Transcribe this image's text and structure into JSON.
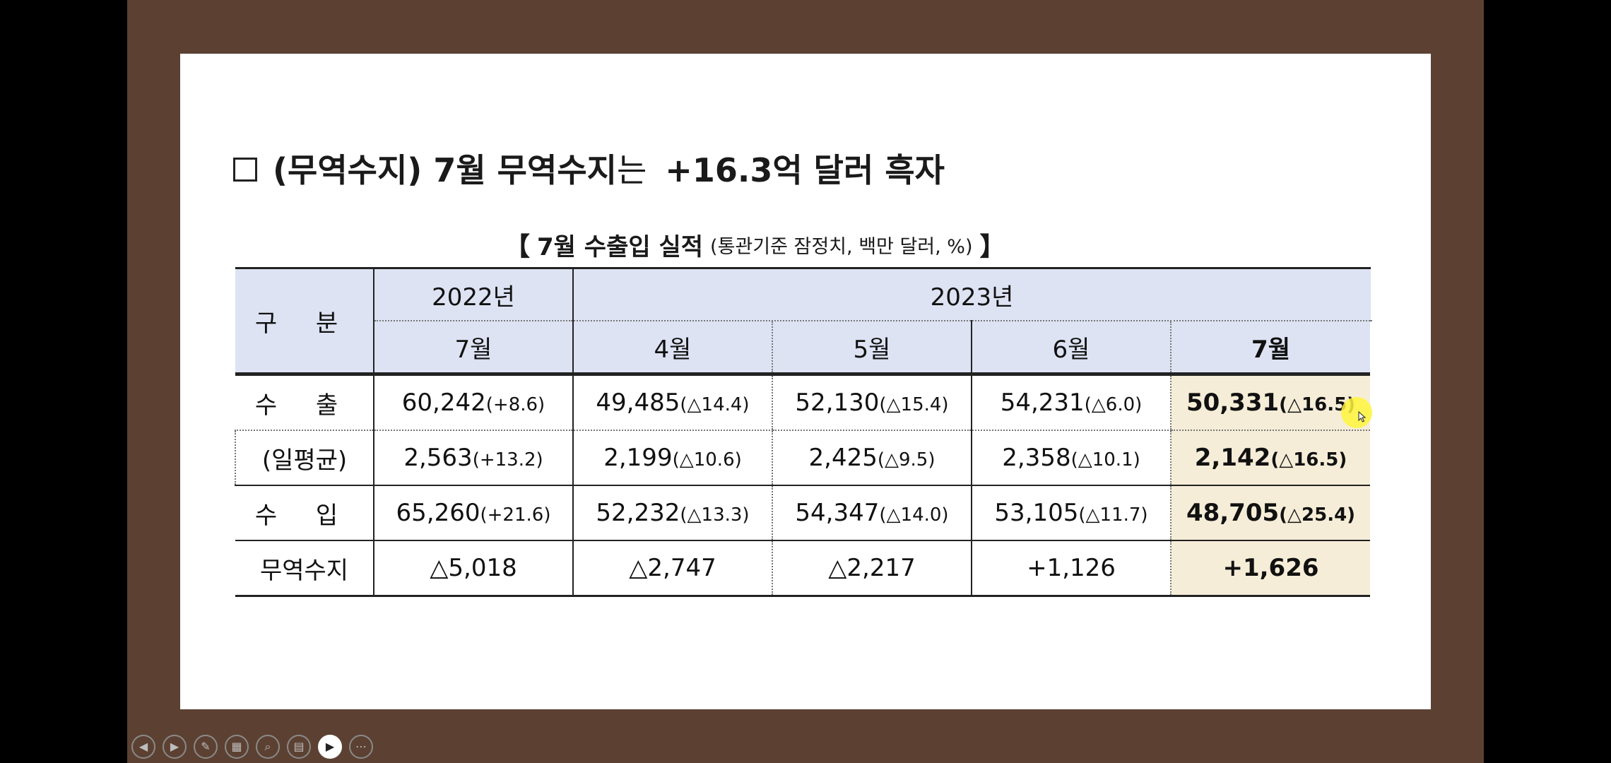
{
  "headline": {
    "marker": "□",
    "bold_part": "(무역수지) 7월 무역수지",
    "light_part": "는",
    "tail": "+16.3억 달러 흑자"
  },
  "subtitle": {
    "open": "【",
    "title": "7월 수출입 실적",
    "note": "(통관기준 잠정치, 백만 달러, %)",
    "close": "】"
  },
  "table": {
    "corner": "구 분",
    "years": [
      "2022년",
      "2023년"
    ],
    "months": [
      "7월",
      "4월",
      "5월",
      "6월",
      "7월"
    ],
    "rows": [
      {
        "label": "수 출",
        "cells": [
          {
            "v": "60,242",
            "p": "(+8.6)"
          },
          {
            "v": "49,485",
            "p": "(△14.4)"
          },
          {
            "v": "52,130",
            "p": "(△15.4)"
          },
          {
            "v": "54,231",
            "p": "(△6.0)"
          },
          {
            "v": "50,331",
            "p": "(△16.5)"
          }
        ]
      },
      {
        "label": "(일평균)",
        "cells": [
          {
            "v": "2,563",
            "p": "(+13.2)"
          },
          {
            "v": "2,199",
            "p": "(△10.6)"
          },
          {
            "v": "2,425",
            "p": "(△9.5)"
          },
          {
            "v": "2,358",
            "p": "(△10.1)"
          },
          {
            "v": "2,142",
            "p": "(△16.5)"
          }
        ]
      },
      {
        "label": "수 입",
        "cells": [
          {
            "v": "65,260",
            "p": "(+21.6)"
          },
          {
            "v": "52,232",
            "p": "(△13.3)"
          },
          {
            "v": "54,347",
            "p": "(△14.0)"
          },
          {
            "v": "53,105",
            "p": "(△11.7)"
          },
          {
            "v": "48,705",
            "p": "(△25.4)"
          }
        ]
      },
      {
        "label": "무역수지",
        "cells": [
          {
            "v": "△5,018",
            "p": ""
          },
          {
            "v": "△2,747",
            "p": ""
          },
          {
            "v": "△2,217",
            "p": ""
          },
          {
            "v": "+1,126",
            "p": ""
          },
          {
            "v": "+1,626",
            "p": ""
          }
        ]
      }
    ]
  },
  "toolbar": {
    "buttons": [
      {
        "icon": "previous-icon",
        "glyph": "◀"
      },
      {
        "icon": "next-icon",
        "glyph": "▶"
      },
      {
        "icon": "pen-icon",
        "glyph": "✎"
      },
      {
        "icon": "slides-grid-icon",
        "glyph": "▦"
      },
      {
        "icon": "zoom-icon",
        "glyph": "⌕"
      },
      {
        "icon": "subtitles-icon",
        "glyph": "▤"
      },
      {
        "icon": "camera-icon",
        "glyph": "▶"
      },
      {
        "icon": "more-icon",
        "glyph": "⋯"
      }
    ]
  },
  "colors": {
    "frame": "#5c4132",
    "header_fill": "#dde3f3",
    "highlight_fill": "#f6edd8",
    "pointer_highlight": "#fff53c"
  }
}
